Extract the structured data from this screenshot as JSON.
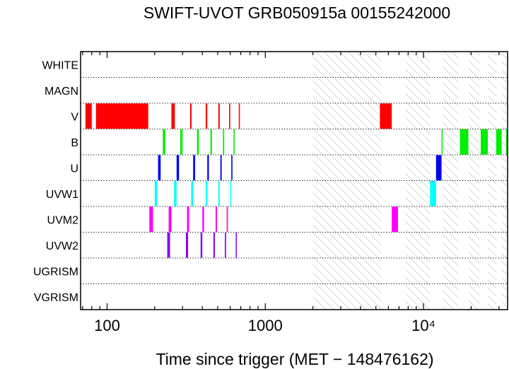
{
  "chart_data": {
    "type": "timeline",
    "title": "SWIFT-UVOT GRB050915a 00155242000",
    "xlabel": "Time since trigger (MET − 148476162)",
    "ylabel": "",
    "xscale": "log",
    "xlim": [
      68,
      34000
    ],
    "xticks": [
      {
        "value": 100,
        "label": "100"
      },
      {
        "value": 1000,
        "label": "1000"
      },
      {
        "value": 10000,
        "label": "10⁴"
      }
    ],
    "filters": [
      "WHITE",
      "MAGN",
      "V",
      "B",
      "U",
      "UVW1",
      "UVM2",
      "UVW2",
      "UGRISM",
      "VGRISM"
    ],
    "colors": {
      "V": "#ff0000",
      "B": "#00ee00",
      "U": "#0000ee",
      "UVW1": "#00ffff",
      "UVM2": "#ff00ff",
      "UVW2": "#8800ff",
      "hatch": "#b0b0b0"
    },
    "gaps": [
      [
        2000,
        5400
      ],
      [
        7700,
        11000
      ],
      [
        13300,
        16600
      ],
      [
        19300,
        22600
      ],
      [
        25400,
        28800
      ],
      [
        31000,
        34000
      ]
    ],
    "series": [
      {
        "filter": "V",
        "intervals": [
          [
            73,
            80
          ],
          [
            85,
            182
          ],
          [
            255,
            268
          ],
          [
            335,
            342
          ],
          [
            420,
            430
          ],
          [
            505,
            515
          ],
          [
            590,
            600
          ],
          [
            680,
            685
          ],
          [
            5300,
            6300
          ]
        ]
      },
      {
        "filter": "B",
        "intervals": [
          [
            225,
            233
          ],
          [
            290,
            300
          ],
          [
            370,
            380
          ],
          [
            450,
            460
          ],
          [
            540,
            550
          ],
          [
            630,
            640
          ],
          [
            13000,
            13100
          ],
          [
            17000,
            19200
          ],
          [
            23000,
            25500
          ],
          [
            28800,
            31200
          ],
          [
            33300,
            34000
          ]
        ]
      },
      {
        "filter": "U",
        "intervals": [
          [
            210,
            218
          ],
          [
            275,
            285
          ],
          [
            350,
            360
          ],
          [
            430,
            440
          ],
          [
            520,
            530
          ],
          [
            610,
            620
          ],
          [
            12000,
            13000
          ]
        ]
      },
      {
        "filter": "UVW1",
        "intervals": [
          [
            200,
            207
          ],
          [
            265,
            275
          ],
          [
            340,
            350
          ],
          [
            420,
            430
          ],
          [
            505,
            515
          ],
          [
            600,
            610
          ],
          [
            11000,
            12000
          ]
        ]
      },
      {
        "filter": "UVM2",
        "intervals": [
          [
            185,
            195
          ],
          [
            245,
            255
          ],
          [
            320,
            330
          ],
          [
            400,
            410
          ],
          [
            485,
            495
          ],
          [
            570,
            580
          ],
          [
            6300,
            6900
          ]
        ]
      },
      {
        "filter": "UVW2",
        "intervals": [
          [
            240,
            250
          ],
          [
            315,
            325
          ],
          [
            390,
            400
          ],
          [
            470,
            480
          ],
          [
            555,
            565
          ],
          [
            650,
            660
          ]
        ]
      }
    ]
  }
}
